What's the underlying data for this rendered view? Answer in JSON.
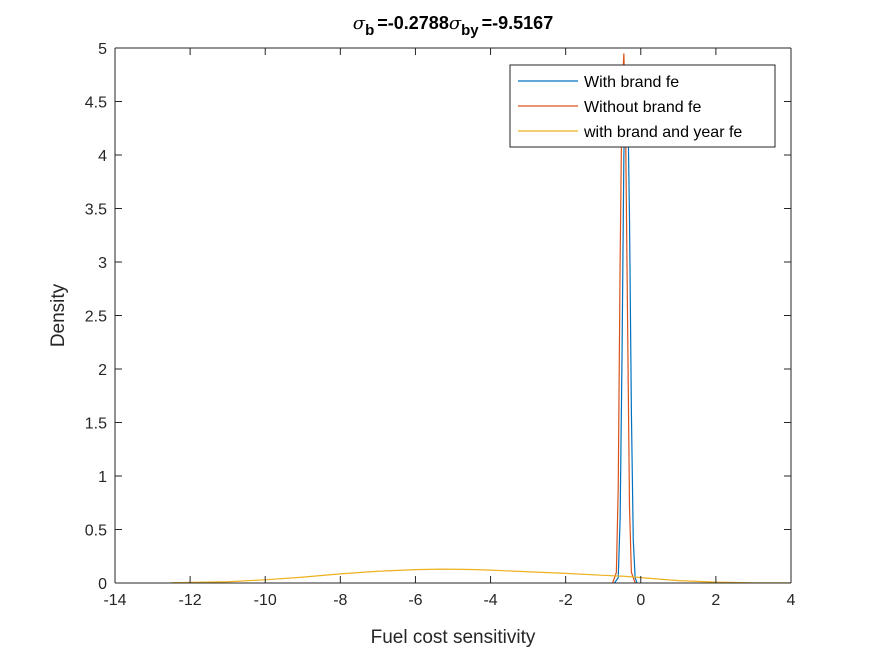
{
  "chart_data": {
    "type": "line",
    "title_parts": [
      {
        "symbol": "σ",
        "sub": "b",
        "value": "=-0.2788"
      },
      {
        "symbol": "σ",
        "sub": "by",
        "value": "=-9.5167"
      }
    ],
    "xlabel": "Fuel cost sensitivity",
    "ylabel": "Density",
    "xlim": [
      -14,
      4
    ],
    "ylim": [
      0,
      5
    ],
    "xticks": [
      "-14",
      "-12",
      "-10",
      "-8",
      "-6",
      "-4",
      "-2",
      "0",
      "2",
      "4"
    ],
    "yticks": [
      "0",
      "0.5",
      "1",
      "1.5",
      "2",
      "2.5",
      "3",
      "3.5",
      "4",
      "4.5",
      "5"
    ],
    "grid": false,
    "legend_position": "top-right",
    "series": [
      {
        "name": "With brand fe",
        "color": "#0072BD",
        "x": [
          -0.7,
          -0.6,
          -0.55,
          -0.5,
          -0.45,
          -0.4,
          -0.35,
          -0.3,
          -0.25,
          -0.2,
          -0.15,
          -0.1
        ],
        "y": [
          0,
          0.05,
          0.6,
          2.1,
          4.0,
          4.8,
          4.6,
          3.4,
          1.6,
          0.4,
          0.05,
          0
        ]
      },
      {
        "name": "Without brand fe",
        "color": "#D95319",
        "x": [
          -0.75,
          -0.65,
          -0.6,
          -0.55,
          -0.5,
          -0.45,
          -0.4,
          -0.35,
          -0.3,
          -0.25,
          -0.15
        ],
        "y": [
          0,
          0.1,
          0.9,
          3.0,
          4.6,
          4.95,
          4.1,
          2.4,
          0.7,
          0.1,
          0
        ]
      },
      {
        "name": "with brand and year fe",
        "color": "#EDB120",
        "x": [
          -12.5,
          -11,
          -10,
          -9,
          -8,
          -7,
          -6,
          -5.3,
          -4.5,
          -4,
          -3,
          -2,
          -1,
          -0.4,
          0,
          1,
          2,
          3,
          4
        ],
        "y": [
          0.003,
          0.012,
          0.03,
          0.055,
          0.085,
          0.11,
          0.125,
          0.13,
          0.126,
          0.12,
          0.105,
          0.09,
          0.072,
          0.062,
          0.05,
          0.022,
          0.008,
          0.002,
          0.001
        ]
      }
    ]
  }
}
